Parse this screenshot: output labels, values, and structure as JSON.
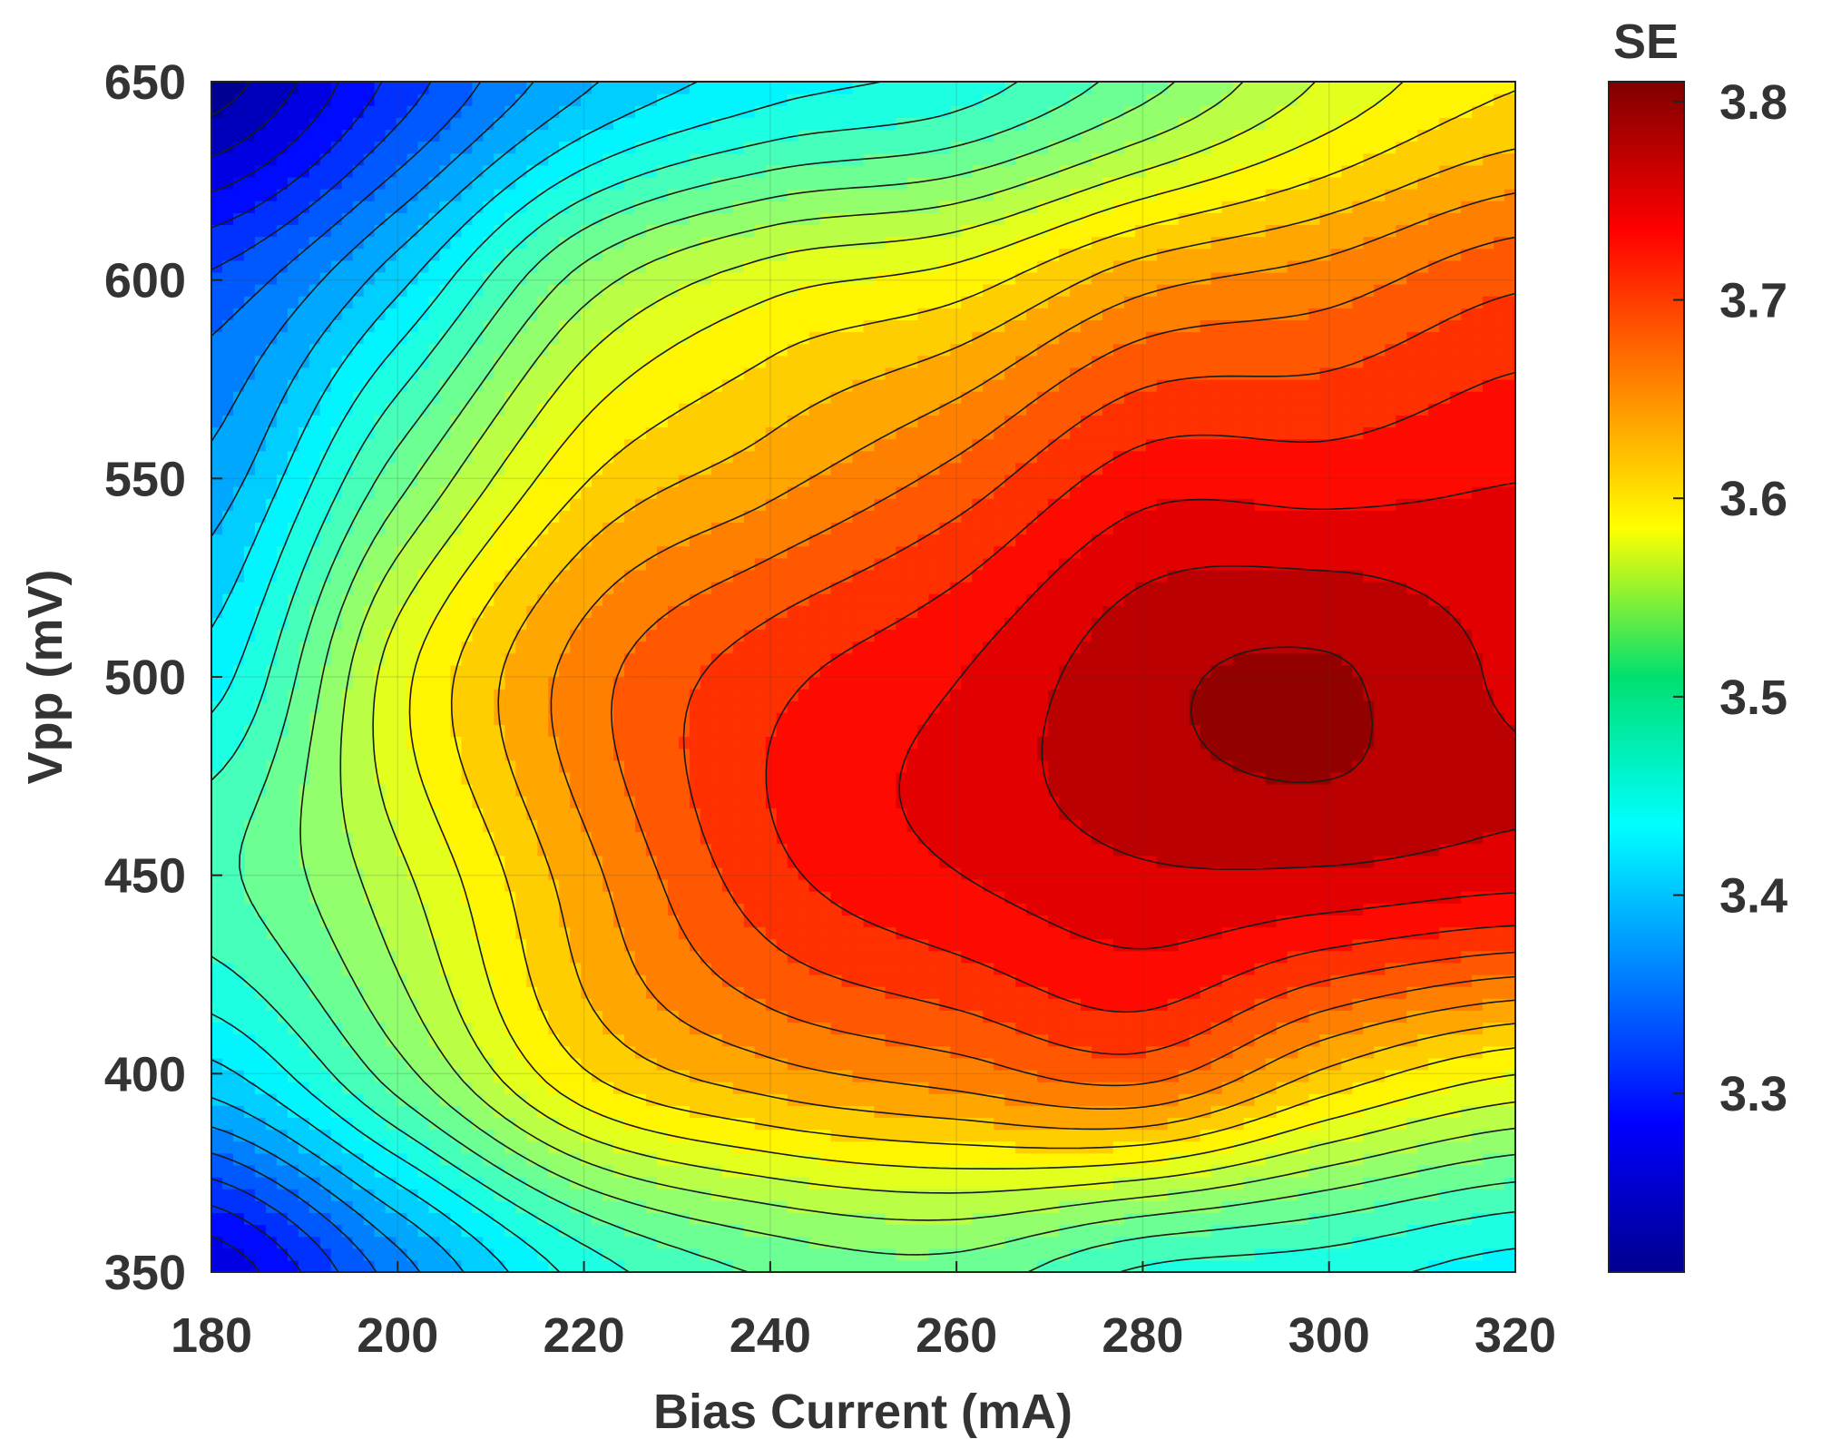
{
  "chart_data": {
    "type": "contour",
    "title": "",
    "xlabel": "Bias Current (mA)",
    "ylabel": "Vpp (mV)",
    "xlim": [
      180,
      320
    ],
    "ylim": [
      350,
      650
    ],
    "xticks": [
      180,
      200,
      220,
      240,
      260,
      280,
      300,
      320
    ],
    "yticks": [
      350,
      400,
      450,
      500,
      550,
      600,
      650
    ],
    "colorbar": {
      "label": "SE",
      "range": [
        3.21,
        3.81
      ],
      "ticks": [
        3.3,
        3.4,
        3.5,
        3.6,
        3.7,
        3.8
      ],
      "colormap": "jet"
    },
    "contour_levels": 26,
    "grid": true,
    "surface_estimate": {
      "description": "SE(Bias Current, Vpp) sampled on a coarse grid (read from the filled-contour colors)",
      "x": [
        180,
        200,
        220,
        240,
        260,
        280,
        300,
        320
      ],
      "y": [
        350,
        400,
        450,
        500,
        550,
        600,
        650
      ],
      "z": [
        [
          3.26,
          3.36,
          3.45,
          3.49,
          3.5,
          3.46,
          3.45,
          3.43
        ],
        [
          3.41,
          3.5,
          3.6,
          3.64,
          3.66,
          3.68,
          3.62,
          3.58
        ],
        [
          3.48,
          3.55,
          3.64,
          3.71,
          3.74,
          3.76,
          3.76,
          3.75
        ],
        [
          3.43,
          3.57,
          3.66,
          3.71,
          3.74,
          3.78,
          3.79,
          3.76
        ],
        [
          3.38,
          3.5,
          3.6,
          3.64,
          3.68,
          3.73,
          3.73,
          3.74
        ],
        [
          3.33,
          3.41,
          3.52,
          3.57,
          3.59,
          3.64,
          3.66,
          3.69
        ],
        [
          3.22,
          3.31,
          3.39,
          3.43,
          3.45,
          3.5,
          3.56,
          3.6
        ]
      ]
    }
  }
}
